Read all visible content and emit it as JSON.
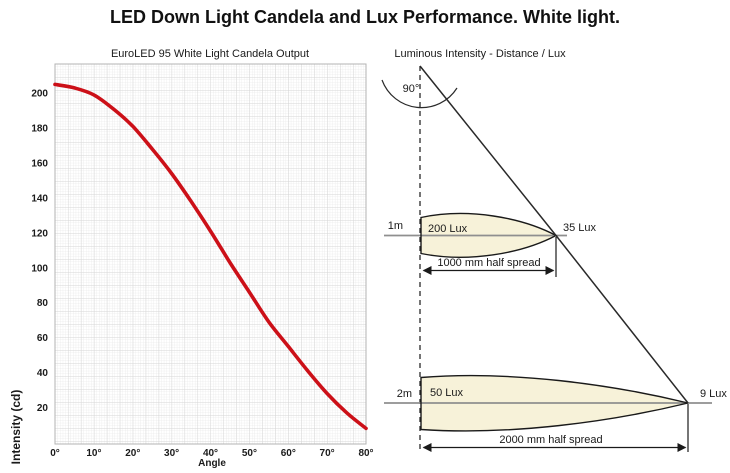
{
  "page": {
    "title": "LED Down Light Candela and Lux Performance. White light."
  },
  "chart_data": {
    "type": "line",
    "title": "EuroLED 95 White Light Candela Output",
    "xlabel": "Angle",
    "ylabel": "Intensity (cd)",
    "x_tick_labels": [
      "0°",
      "10°",
      "20°",
      "30°",
      "40°",
      "50°",
      "60°",
      "70°",
      "80°"
    ],
    "x_tick_values": [
      0,
      10,
      20,
      30,
      40,
      50,
      60,
      70,
      80
    ],
    "y_ticks": [
      20,
      40,
      60,
      80,
      100,
      120,
      140,
      160,
      180,
      200
    ],
    "xlim": [
      0,
      80
    ],
    "ylim": [
      0,
      217
    ],
    "grid": true,
    "legend": "none",
    "line_color": "#cc1018",
    "series": [
      {
        "name": "White light candela output",
        "x": [
          0,
          5,
          10,
          15,
          20,
          25,
          30,
          35,
          40,
          45,
          50,
          55,
          60,
          65,
          70,
          75,
          80
        ],
        "values": [
          205,
          203,
          199,
          191,
          181,
          168,
          154,
          138,
          121,
          103,
          86,
          69,
          55,
          41,
          28,
          17,
          8
        ]
      }
    ]
  },
  "diagram": {
    "title": "Luminous Intensity - Distance / Lux",
    "beam_angle_label": "90°",
    "beam_fill": "#f7f2d9",
    "rows": [
      {
        "distance_label": "1m",
        "center_lux_label": "200 Lux",
        "edge_lux_label": "35 Lux",
        "spread_label": "1000 mm half spread"
      },
      {
        "distance_label": "2m",
        "center_lux_label": "50 Lux",
        "edge_lux_label": "9 Lux",
        "spread_label": "2000 mm half spread"
      }
    ]
  }
}
